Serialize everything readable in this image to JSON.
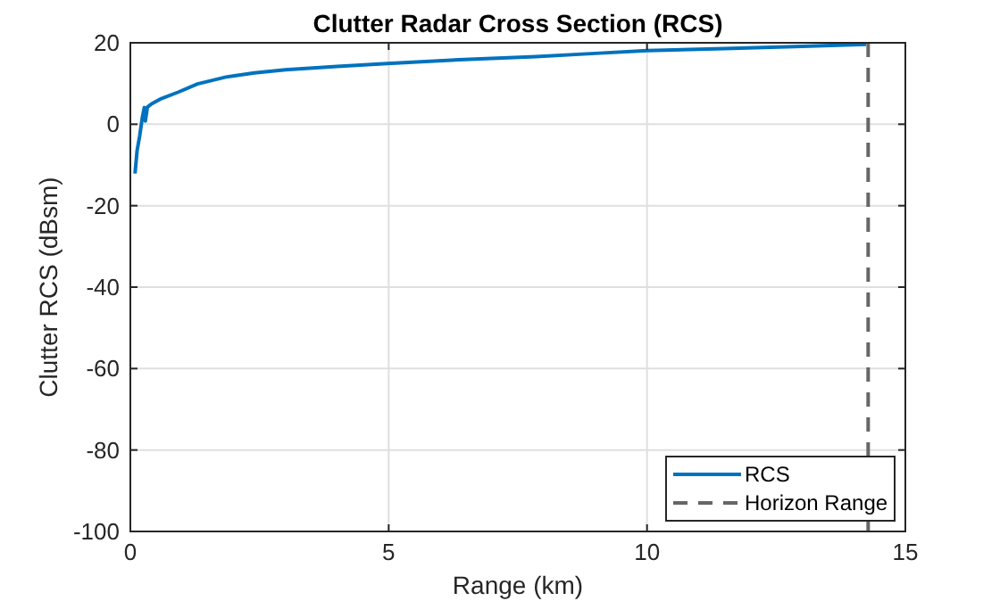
{
  "chart_data": {
    "type": "line",
    "title": "Clutter Radar Cross Section (RCS)",
    "xlabel": "Range (km)",
    "ylabel": "Clutter RCS (dBsm)",
    "xlim": [
      0,
      15
    ],
    "xticks": [
      0,
      5,
      10,
      15
    ],
    "ylim": [
      -100,
      20
    ],
    "yticks": [
      -100,
      -80,
      -60,
      -40,
      -20,
      0,
      20
    ],
    "grid": true,
    "legend": "bottom right",
    "series": [
      {
        "name": "RCS",
        "color": "#0072bd",
        "x": [
          0.09,
          0.13,
          0.18,
          0.23,
          0.27,
          0.29,
          0.31,
          0.33,
          0.41,
          0.6,
          0.93,
          1.3,
          1.85,
          2.4,
          3.0,
          4.0,
          4.97,
          6.46,
          7.85,
          9.0,
          10.0,
          11.5,
          13.0,
          14.24
        ],
        "values": [
          -12.1,
          -6.5,
          -2.9,
          1.5,
          4.1,
          0.8,
          2.5,
          4.2,
          5.0,
          6.3,
          7.9,
          9.9,
          11.6,
          12.6,
          13.4,
          14.2,
          14.9,
          15.9,
          16.6,
          17.4,
          18.1,
          18.6,
          19.1,
          19.6
        ]
      }
    ],
    "ref_lines": [
      {
        "axis": "x",
        "value": 14.28,
        "label": "Horizon Range",
        "color": "#666666",
        "line_style": "dashed"
      }
    ]
  }
}
